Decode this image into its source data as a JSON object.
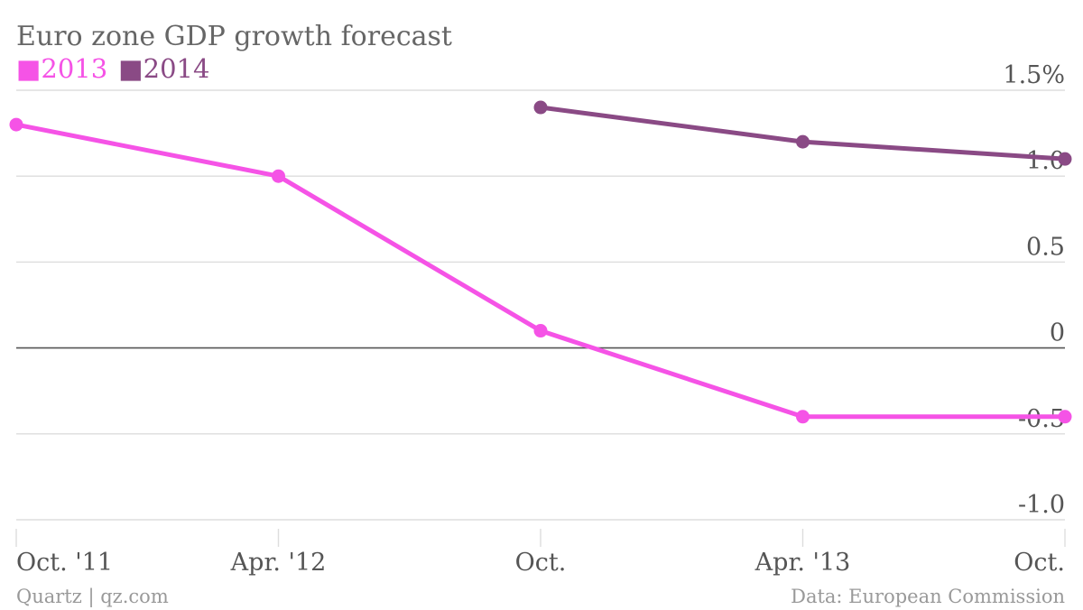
{
  "chart_data": {
    "type": "line",
    "title": "Euro zone GDP growth forecast",
    "categories": [
      "Oct. '11",
      "Apr. '12",
      "Oct.",
      "Apr. '13",
      "Oct."
    ],
    "series": [
      {
        "name": "2013",
        "color": "#f553e6",
        "values": [
          1.3,
          1.0,
          0.1,
          -0.4,
          -0.4
        ]
      },
      {
        "name": "2014",
        "color": "#8a4a85",
        "values": [
          null,
          null,
          1.4,
          1.2,
          1.1
        ]
      }
    ],
    "ylim": [
      -1.0,
      1.5
    ],
    "yticks": [
      1.5,
      1.0,
      0.5,
      0,
      -0.5,
      -1.0
    ],
    "ytick_labels": [
      "1.5%",
      "1.0",
      "0.5",
      "0",
      "-0.5",
      "-1.0"
    ],
    "grid": true,
    "legend_position": "top-left"
  },
  "footer": {
    "source_left": "Quartz | qz.com",
    "source_right": "Data: European Commission"
  },
  "legend_marker": "■"
}
